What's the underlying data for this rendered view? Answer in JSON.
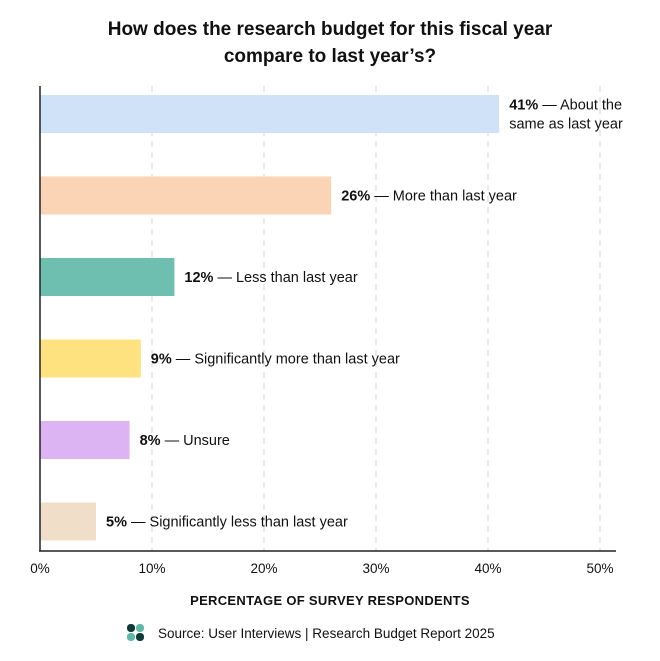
{
  "chart_data": {
    "type": "bar",
    "orientation": "horizontal",
    "title_lines": [
      "How does the research budget for this fiscal year",
      "compare to last year’s?"
    ],
    "categories": [
      "About the same as last year",
      "More than last year",
      "Less than last year",
      "Significantly more than last year",
      "Unsure",
      "Significantly less than last year"
    ],
    "values": [
      41,
      26,
      12,
      9,
      8,
      5
    ],
    "value_labels": [
      "41%",
      "26%",
      "12%",
      "9%",
      "8%",
      "5%"
    ],
    "label_lines": [
      [
        "— About the",
        "same as last year"
      ],
      [
        "— More than last year"
      ],
      [
        "— Less than last year"
      ],
      [
        "— Significantly more than last year"
      ],
      [
        "— Unsure"
      ],
      [
        "— Significantly less than last year"
      ]
    ],
    "colors": [
      "#cfe2f7",
      "#fbd3b5",
      "#6fbfb0",
      "#fde27f",
      "#dcb3f3",
      "#f0dec9"
    ],
    "xlim": [
      0,
      50
    ],
    "xticks": [
      0,
      10,
      20,
      30,
      40,
      50
    ],
    "xtick_labels": [
      "0%",
      "10%",
      "20%",
      "30%",
      "40%",
      "50%"
    ],
    "xlabel": "PERCENTAGE OF SURVEY RESPONDENTS",
    "ylabel": "",
    "grid": true,
    "source": "Source: User Interviews | Research Budget Report 2025"
  },
  "logo": {
    "icon": "user-interviews-logo-icon",
    "colors": [
      "#0e3b3a",
      "#5fb8a9"
    ]
  }
}
